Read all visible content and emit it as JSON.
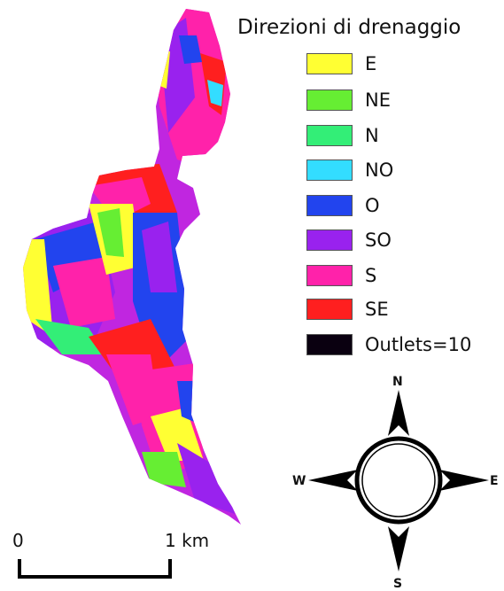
{
  "legend": {
    "title": "Direzioni di drenaggio",
    "items": [
      {
        "label": "E",
        "color": "#ffff33"
      },
      {
        "label": "NE",
        "color": "#66ee33"
      },
      {
        "label": "N",
        "color": "#33ee77"
      },
      {
        "label": "NO",
        "color": "#33ddff"
      },
      {
        "label": "O",
        "color": "#2244ee"
      },
      {
        "label": "SO",
        "color": "#9922ee"
      },
      {
        "label": "S",
        "color": "#ff22aa"
      },
      {
        "label": "SE",
        "color": "#ff1f1f"
      },
      {
        "label": "Outlets=10",
        "color": "#0a0010"
      }
    ]
  },
  "compass": {
    "n": "N",
    "e": "E",
    "s": "S",
    "w": "W"
  },
  "scale": {
    "start": "0",
    "end": "1 km"
  }
}
